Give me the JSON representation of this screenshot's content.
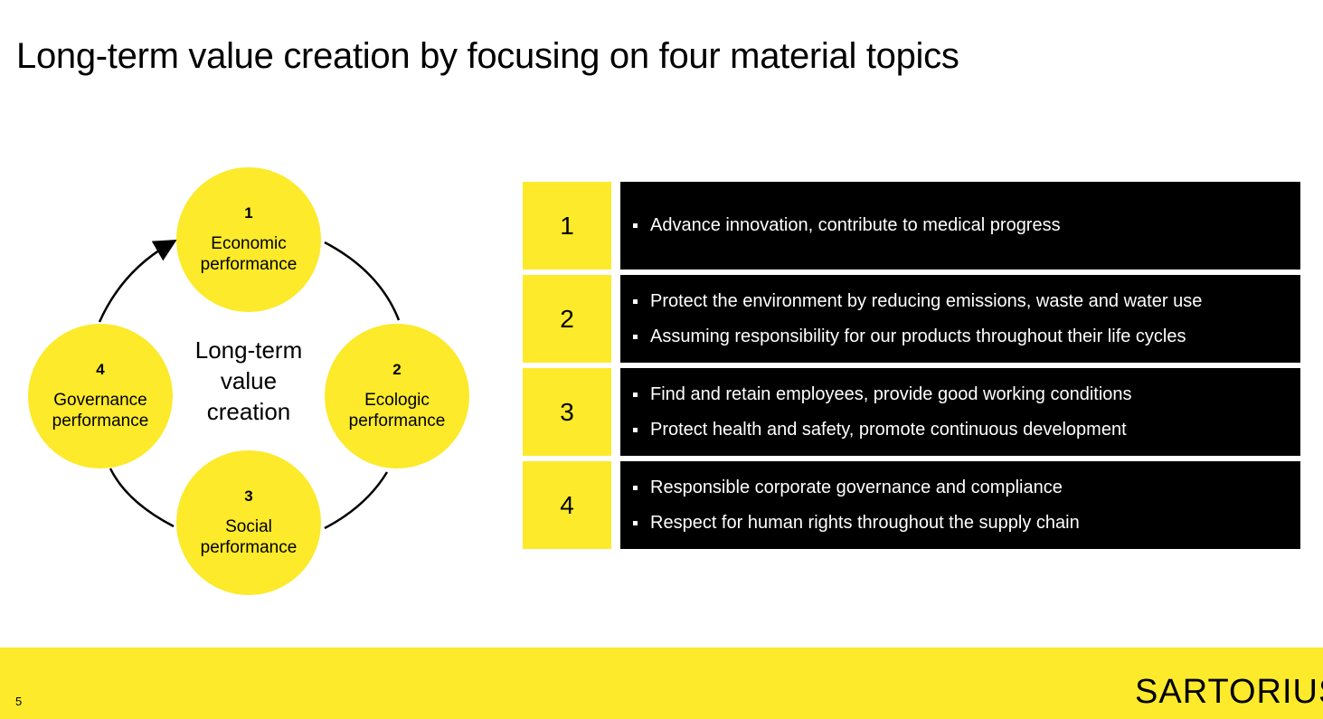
{
  "title": "Long-term value creation by focusing on four material topics",
  "diagram": {
    "center_label_lines": [
      "Long-term",
      "value",
      "creation"
    ],
    "nodes": [
      {
        "number": "1",
        "label": "Economic performance"
      },
      {
        "number": "2",
        "label": "Ecologic performance"
      },
      {
        "number": "3",
        "label": "Social performance"
      },
      {
        "number": "4",
        "label": "Governance performance"
      }
    ]
  },
  "topics": [
    {
      "number": "1",
      "bullets": [
        "Advance innovation, contribute to medical progress"
      ]
    },
    {
      "number": "2",
      "bullets": [
        "Protect the environment by reducing emissions, waste and water use",
        "Assuming responsibility for our products throughout their life cycles"
      ]
    },
    {
      "number": "3",
      "bullets": [
        "Find and retain employees, provide good working conditions",
        "Protect health and safety, promote continuous development"
      ]
    },
    {
      "number": "4",
      "bullets": [
        "Responsible corporate governance and compliance",
        "Respect for human rights throughout the supply chain"
      ]
    }
  ],
  "footer": {
    "page_number": "5",
    "logo_text": "SARTORIUS"
  },
  "colors": {
    "accent_yellow": "#fcea2b",
    "panel_black": "#000000"
  }
}
